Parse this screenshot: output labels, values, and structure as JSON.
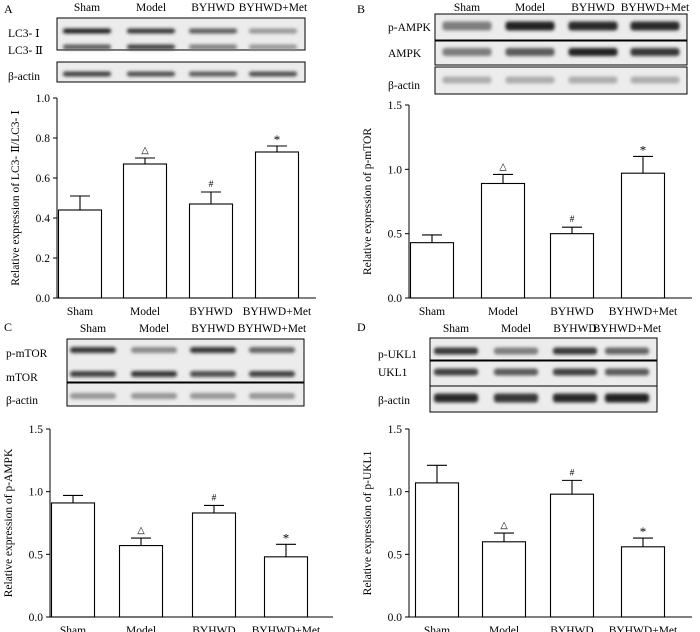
{
  "chart_data": [
    {
      "panel_label": "A",
      "type": "bar",
      "categories": [
        "Sham",
        "Model",
        "BYHWD",
        "BYHWD+Met"
      ],
      "values": [
        0.44,
        0.67,
        0.47,
        0.73
      ],
      "errors": [
        0.07,
        0.03,
        0.06,
        0.03
      ],
      "annotations": [
        "",
        "△",
        "#",
        "*"
      ],
      "ylabel": "Relative expression of LC3- Ⅱ/LC3- Ⅰ",
      "ylim": [
        0,
        1.0
      ],
      "yticks": [
        0.0,
        0.2,
        0.4,
        0.6,
        0.8,
        1.0
      ],
      "ytick_labels": [
        "0.0",
        "0.2",
        "0.4",
        "0.6",
        "0.8",
        "1.0"
      ],
      "blot": {
        "lanes": [
          "Sham",
          "Model",
          "BYHWD",
          "BYHWD+Met"
        ],
        "rows": [
          "LC3- Ⅰ",
          "LC3- Ⅱ",
          "β-actin"
        ]
      }
    },
    {
      "panel_label": "B",
      "type": "bar",
      "categories": [
        "Sham",
        "Model",
        "BYHWD",
        "BYHWD+Met"
      ],
      "values": [
        0.43,
        0.89,
        0.5,
        0.97
      ],
      "errors": [
        0.06,
        0.07,
        0.05,
        0.13
      ],
      "annotations": [
        "",
        "△",
        "#",
        "*"
      ],
      "ylabel": "Relative expression of p-mTOR",
      "ylim": [
        0,
        1.5
      ],
      "yticks": [
        0.0,
        0.5,
        1.0,
        1.5
      ],
      "ytick_labels": [
        "0.0",
        "0.5",
        "1.0",
        "1.5"
      ],
      "blot": {
        "lanes": [
          "Sham",
          "Model",
          "BYHWD",
          "BYHWD+Met"
        ],
        "rows": [
          "p-AMPK",
          "AMPK",
          "β-actin"
        ]
      }
    },
    {
      "panel_label": "C",
      "type": "bar",
      "categories": [
        "Sham",
        "Model",
        "BYHWD",
        "BYHWD+Met"
      ],
      "values": [
        0.91,
        0.57,
        0.83,
        0.48
      ],
      "errors": [
        0.06,
        0.06,
        0.06,
        0.1
      ],
      "annotations": [
        "",
        "△",
        "#",
        "*"
      ],
      "ylabel": "Relative expression of p-AMPK",
      "ylim": [
        0,
        1.5
      ],
      "yticks": [
        0.0,
        0.5,
        1.0,
        1.5
      ],
      "ytick_labels": [
        "0.0",
        "0.5",
        "1.0",
        "1.5"
      ],
      "blot": {
        "lanes": [
          "Sham",
          "Model",
          "BYHWD",
          "BYHWD+Met"
        ],
        "rows": [
          "p-mTOR",
          "mTOR",
          "β-actin"
        ]
      }
    },
    {
      "panel_label": "D",
      "type": "bar",
      "categories": [
        "Sham",
        "Model",
        "BYHWD",
        "BYHWD+Met"
      ],
      "values": [
        1.07,
        0.6,
        0.98,
        0.56
      ],
      "errors": [
        0.14,
        0.07,
        0.11,
        0.07
      ],
      "annotations": [
        "",
        "△",
        "#",
        "*"
      ],
      "ylabel": "Relative expression of p-UKL1",
      "ylim": [
        0,
        1.5
      ],
      "yticks": [
        0.0,
        0.5,
        1.0,
        1.5
      ],
      "ytick_labels": [
        "0.0",
        "0.5",
        "1.0",
        "1.5"
      ],
      "blot": {
        "lanes": [
          "Sham",
          "Model",
          "BYHWD",
          "BYHWD+Met"
        ],
        "rows": [
          "p-UKL1",
          "UKL1",
          "β-actin"
        ]
      }
    }
  ]
}
